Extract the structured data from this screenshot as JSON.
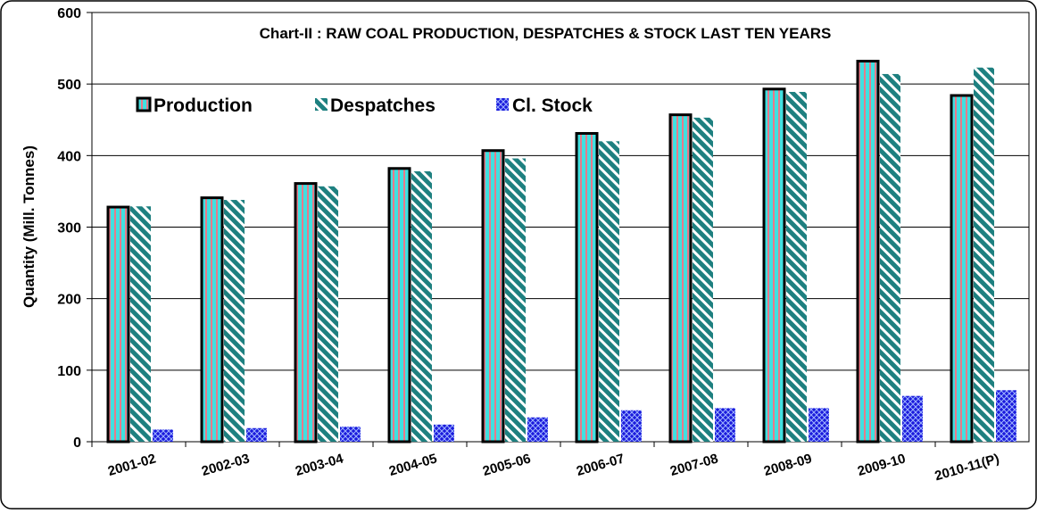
{
  "chart_data": {
    "type": "bar",
    "title": "Chart-II : RAW COAL PRODUCTION, DESPATCHES & STOCK  LAST TEN YEARS",
    "xlabel": "",
    "ylabel": "Quantity (Mill. Tonnes)",
    "ylim": [
      0,
      600
    ],
    "yticks": [
      0,
      100,
      200,
      300,
      400,
      500,
      600
    ],
    "grid": "horizontal",
    "legend_position": "top-left",
    "categories": [
      "2001-02",
      "2002-03",
      "2003-04",
      "2004-05",
      "2005-06",
      "2006-07",
      "2007-08",
      "2008-09",
      "2009-10",
      "2010-11(P)"
    ],
    "series": [
      {
        "name": "Production",
        "values": [
          328,
          341,
          361,
          382,
          407,
          431,
          457,
          493,
          532,
          484
        ],
        "color": "#40e0e0"
      },
      {
        "name": "Despatches",
        "values": [
          329,
          338,
          357,
          378,
          396,
          420,
          453,
          489,
          514,
          523
        ],
        "color": "#1e8080"
      },
      {
        "name": "Cl. Stock",
        "values": [
          17,
          19,
          21,
          24,
          34,
          44,
          47,
          47,
          64,
          72
        ],
        "color": "#1a1adc"
      }
    ]
  }
}
